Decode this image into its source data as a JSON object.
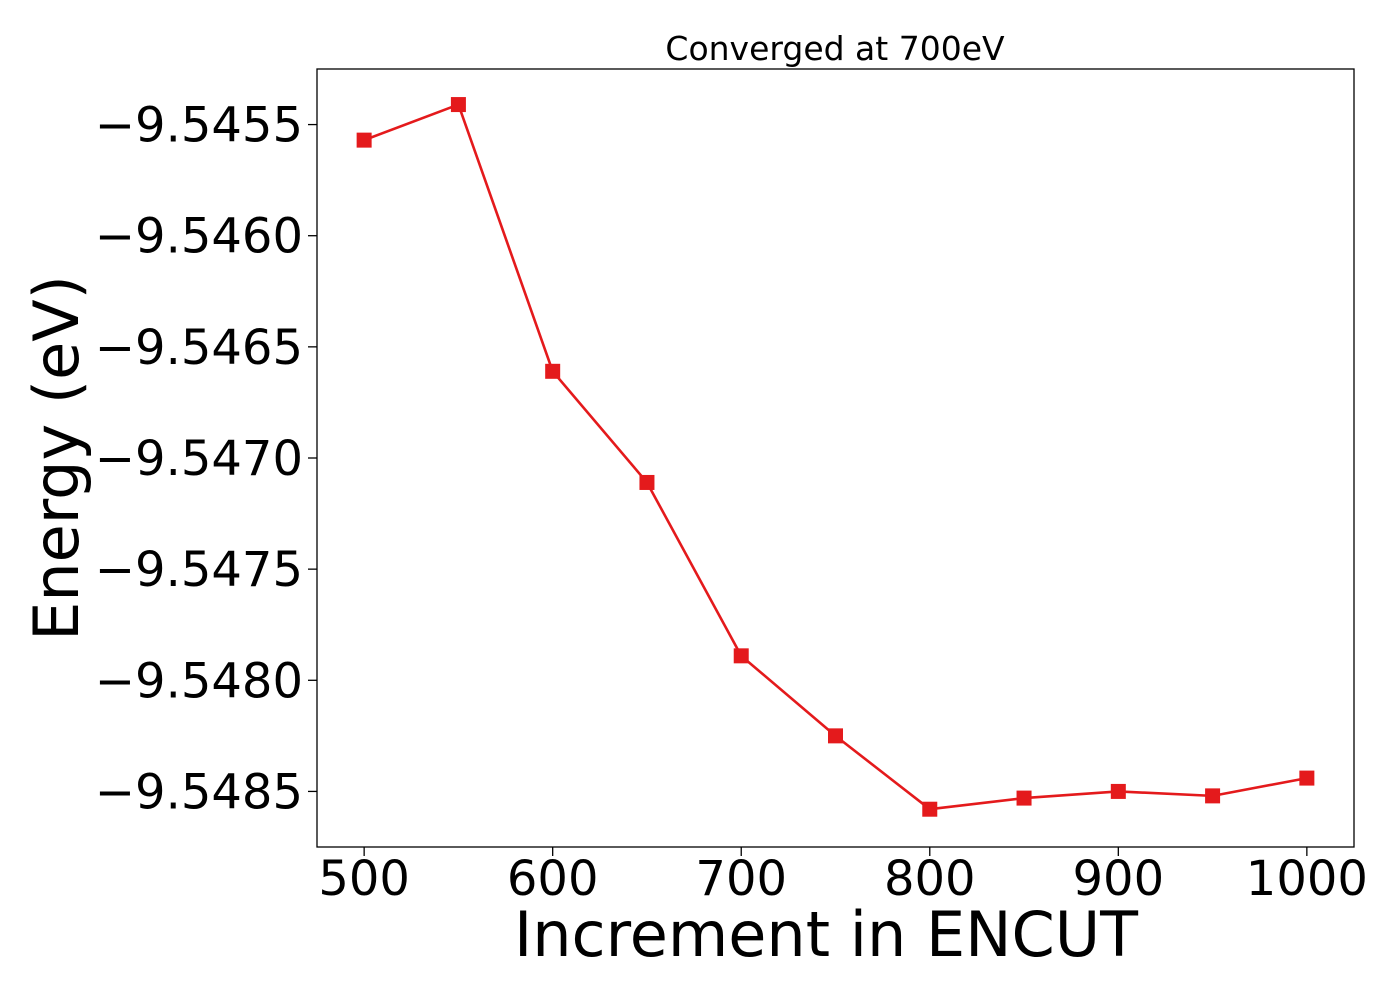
{
  "chart_data": {
    "type": "line",
    "title": "Converged at 700eV",
    "xlabel": "Increment in ENCUT",
    "ylabel": "Energy (eV)",
    "x": [
      500,
      550,
      600,
      650,
      700,
      750,
      800,
      850,
      900,
      950,
      1000
    ],
    "xticks": [
      500,
      600,
      700,
      800,
      900,
      1000
    ],
    "xtick_labels": [
      "500",
      "600",
      "700",
      "800",
      "900",
      "1000"
    ],
    "yticks": [
      -9.5455,
      -9.546,
      -9.5465,
      -9.547,
      -9.5475,
      -9.548,
      -9.5485
    ],
    "ytick_labels": [
      "−9.5455",
      "−9.5460",
      "−9.5465",
      "−9.5470",
      "−9.5475",
      "−9.5480",
      "−9.5485"
    ],
    "xlim": [
      475,
      1025
    ],
    "ylim": [
      -9.54875,
      -9.54525
    ],
    "grid": false,
    "series": [
      {
        "color": "#e41a1c",
        "marker": "square",
        "values": [
          -9.54557,
          -9.54541,
          -9.54661,
          -9.54711,
          -9.54789,
          -9.54825,
          -9.54858,
          -9.54853,
          -9.5485,
          -9.54852,
          -9.54844
        ]
      }
    ]
  }
}
